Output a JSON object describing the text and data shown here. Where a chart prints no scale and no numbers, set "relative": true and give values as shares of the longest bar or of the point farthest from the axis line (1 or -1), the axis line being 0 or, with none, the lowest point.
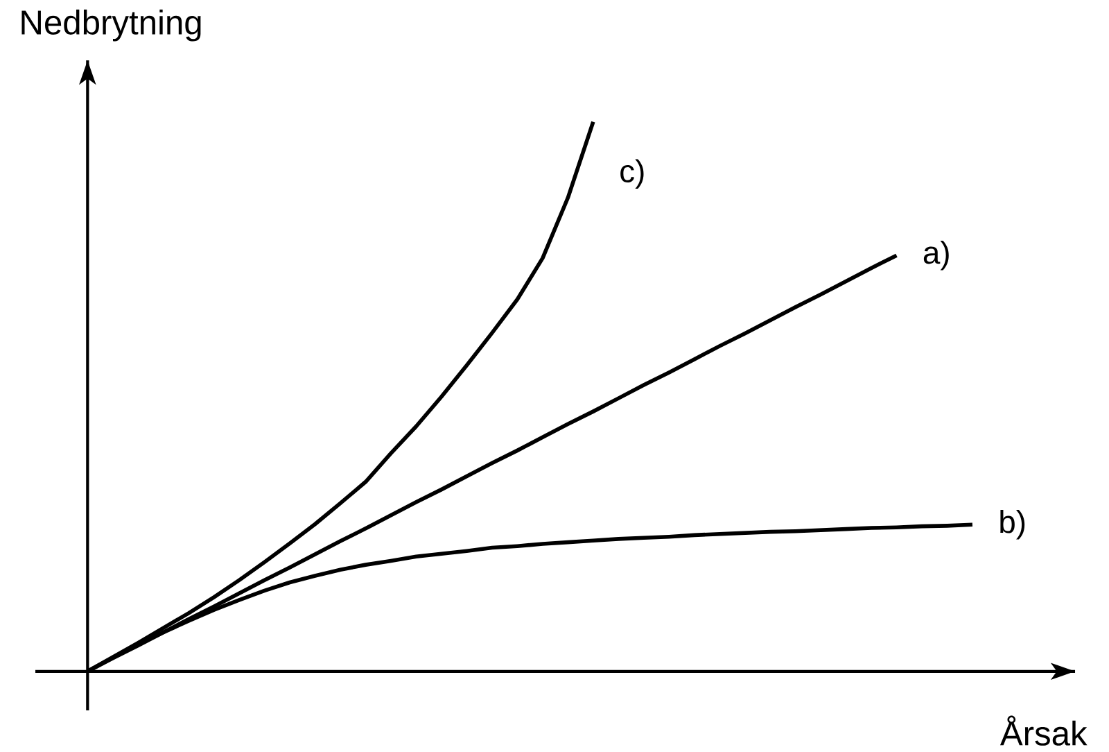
{
  "chart_data": {
    "type": "line",
    "relative": true,
    "xlabel": "Årsak",
    "ylabel": "Nedbrytning",
    "legend": false,
    "marker": "none",
    "categories": [
      null,
      null,
      null,
      null,
      null,
      null,
      null,
      null,
      null,
      null,
      null,
      null,
      null,
      null,
      null,
      null,
      null,
      null,
      null,
      null,
      null,
      null,
      null,
      null,
      null,
      null,
      null,
      null,
      null,
      null,
      null,
      null,
      null,
      null,
      null,
      null
    ],
    "series": [
      {
        "name": "a)",
        "color": "#000000",
        "values": [
          0,
          0.024,
          0.047,
          0.071,
          0.095,
          0.118,
          0.142,
          0.166,
          0.189,
          0.213,
          0.237,
          0.26,
          0.284,
          0.308,
          0.331,
          0.355,
          0.379,
          0.402,
          0.426,
          0.45,
          0.473,
          0.497,
          0.521,
          0.544,
          0.568,
          0.592,
          0.615,
          0.639,
          0.663,
          0.686,
          0.71,
          0.734,
          0.757,
          null,
          null,
          null
        ]
      },
      {
        "name": "b)",
        "color": "#000000",
        "values": [
          0,
          0.025,
          0.049,
          0.071,
          0.092,
          0.112,
          0.13,
          0.147,
          0.162,
          0.174,
          0.185,
          0.194,
          0.201,
          0.209,
          0.214,
          0.219,
          0.225,
          0.228,
          0.232,
          0.235,
          0.238,
          0.241,
          0.243,
          0.245,
          0.248,
          0.25,
          0.252,
          0.254,
          0.255,
          0.257,
          0.259,
          0.261,
          0.262,
          0.264,
          0.265,
          0.267
        ]
      },
      {
        "name": "c)",
        "color": "#000000",
        "values": [
          0,
          0.026,
          0.052,
          0.079,
          0.106,
          0.135,
          0.166,
          0.199,
          0.233,
          0.268,
          0.306,
          0.345,
          0.397,
          0.446,
          0.5,
          0.557,
          0.616,
          0.677,
          0.752,
          0.862,
          1,
          null,
          null,
          null,
          null,
          null,
          null,
          null,
          null,
          null,
          null,
          null,
          null,
          null,
          null,
          null
        ]
      }
    ]
  }
}
